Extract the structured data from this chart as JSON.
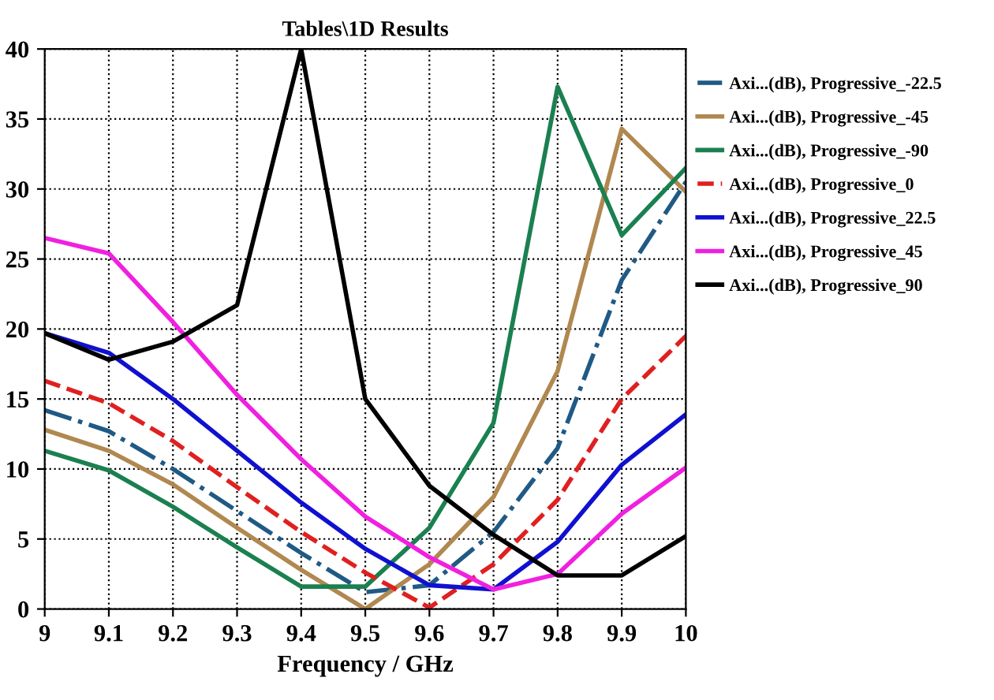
{
  "chart_data": {
    "type": "line",
    "title": "Tables\\1D Results",
    "xlabel": "Frequency / GHz",
    "x": [
      9,
      9.1,
      9.2,
      9.3,
      9.4,
      9.5,
      9.6,
      9.7,
      9.8,
      9.9,
      10
    ],
    "xlim": [
      9,
      10
    ],
    "xticks": [
      9,
      9.1,
      9.2,
      9.3,
      9.4,
      9.5,
      9.6,
      9.7,
      9.8,
      9.9,
      10
    ],
    "ylim": [
      0,
      40
    ],
    "yticks": [
      0,
      5,
      10,
      15,
      20,
      25,
      30,
      35,
      40
    ],
    "grid": true,
    "legend": "top right",
    "marker": "none",
    "series": [
      {
        "name": "Axi...(dB), Progressive_-22.5",
        "color": "#1f5a85",
        "line_style": "dashdot",
        "values": [
          14.2,
          12.7,
          10,
          7,
          4,
          1.2,
          1.7,
          5.5,
          11.5,
          23.5,
          30.5
        ]
      },
      {
        "name": "Axi...(dB), Progressive_-45",
        "color": "#b08850",
        "line_style": "solid",
        "values": [
          12.8,
          11.3,
          8.9,
          5.8,
          2.8,
          0,
          3.2,
          8,
          17,
          34.3,
          29.8
        ]
      },
      {
        "name": "Axi...(dB), Progressive_-90",
        "color": "#1b8050",
        "line_style": "solid",
        "values": [
          11.3,
          9.9,
          7.3,
          4.4,
          1.6,
          1.6,
          5.8,
          13.3,
          37.3,
          26.7,
          31.5
        ]
      },
      {
        "name": "Axi...(dB), Progressive_0",
        "color": "#e02020",
        "line_style": "dashed",
        "values": [
          16.3,
          14.7,
          12,
          8.7,
          5.5,
          2.6,
          0.1,
          3.2,
          7.8,
          15,
          19.5
        ]
      },
      {
        "name": "Axi...(dB), Progressive_22.5",
        "color": "#1010d0",
        "line_style": "solid",
        "values": [
          19.7,
          18.3,
          15,
          11.3,
          7.6,
          4.3,
          1.7,
          1.4,
          4.8,
          10.3,
          13.9
        ]
      },
      {
        "name": "Axi...(dB), Progressive_45",
        "color": "#f020e0",
        "line_style": "solid",
        "values": [
          26.5,
          25.4,
          20.5,
          15.3,
          10.7,
          6.6,
          3.7,
          1.4,
          2.5,
          6.8,
          10.1
        ]
      },
      {
        "name": "Axi...(dB), Progressive_90",
        "color": "#000000",
        "line_style": "solid",
        "values": [
          19.7,
          17.8,
          19.1,
          21.7,
          40,
          15,
          8.8,
          5.3,
          2.4,
          2.4,
          5.2
        ]
      }
    ]
  }
}
